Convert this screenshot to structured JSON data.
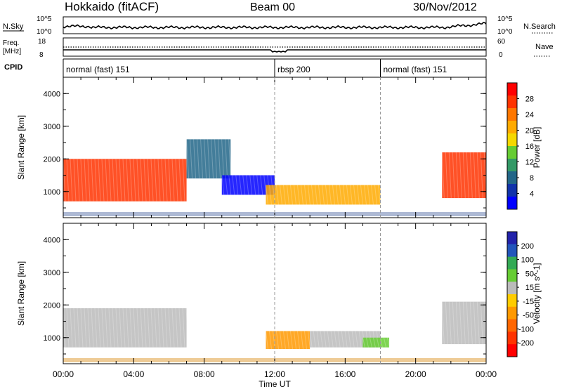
{
  "header": {
    "station": "Hokkaido (fitACF)",
    "beam": "Beam 00",
    "date": "30/Nov/2012"
  },
  "top_panels": {
    "nsky": {
      "label": "N.Sky",
      "tick_hi": "10^5",
      "tick_lo": "10^0",
      "right_label": "N.Search",
      "right_hi": "10^5",
      "right_lo": "10^0"
    },
    "freq": {
      "label_line1": "Freq.",
      "label_line2": "[MHz]",
      "tick_hi": "18",
      "tick_lo": "8",
      "right_label": "Nave",
      "right_hi": "60",
      "right_lo": "0"
    },
    "cpid": {
      "label": "CPID",
      "modes": [
        {
          "name": "normal (fast) 151",
          "start_hour": 0
        },
        {
          "name": "rbsp 200",
          "start_hour": 12
        },
        {
          "name": "normal (fast) 151",
          "start_hour": 18
        }
      ]
    }
  },
  "colorbars": {
    "power": {
      "label": "Power [dB]",
      "ticks": [
        "28",
        "24",
        "20",
        "16",
        "12",
        "8",
        "4"
      ],
      "colors": [
        "#ff0000",
        "#ff3300",
        "#ff7700",
        "#ffaa00",
        "#f5d800",
        "#66cc33",
        "#339966",
        "#226688",
        "#1133aa",
        "#0000ff"
      ]
    },
    "velocity": {
      "label": "Velocity [m s^-1]",
      "ticks": [
        "200",
        "100",
        "50",
        "15",
        "-15",
        "-50",
        "-100",
        "-200"
      ],
      "colors": [
        "#2222aa",
        "#2255bb",
        "#33aa55",
        "#66cc33",
        "#bbbbbb",
        "#ffcc00",
        "#ff9900",
        "#ff6600",
        "#ff3300",
        "#ff0000"
      ]
    }
  },
  "axes": {
    "ylabel": "Slant Range [km]",
    "xlabel": "Time UT",
    "xticks": [
      "00:00",
      "04:00",
      "08:00",
      "12:00",
      "16:00",
      "20:00",
      "00:00"
    ],
    "yticks": [
      "1000",
      "2000",
      "3000",
      "4000"
    ]
  },
  "chart_data": {
    "type": "heatmap",
    "x_unit": "hours UT",
    "xlim": [
      0,
      24
    ],
    "ylim": [
      200,
      4500
    ],
    "panels": [
      {
        "name": "Power",
        "zlabel": "Power [dB]",
        "regions": [
          {
            "t0": 0,
            "t1": 7,
            "r0": 700,
            "r1": 2000,
            "level": 28
          },
          {
            "t0": 7,
            "t1": 9.5,
            "r0": 1400,
            "r1": 2600,
            "level": 8
          },
          {
            "t0": 9,
            "t1": 12,
            "r0": 900,
            "r1": 1500,
            "level": 4
          },
          {
            "t0": 11.5,
            "t1": 18,
            "r0": 600,
            "r1": 1200,
            "level": 20
          },
          {
            "t0": 21.5,
            "t1": 24,
            "r0": 800,
            "r1": 2200,
            "level": 28
          }
        ]
      },
      {
        "name": "Velocity",
        "zlabel": "Velocity [m s^-1]",
        "regions": [
          {
            "t0": 0,
            "t1": 7,
            "r0": 700,
            "r1": 1900,
            "level": 0
          },
          {
            "t0": 11.5,
            "t1": 14,
            "r0": 650,
            "r1": 1200,
            "level": -100
          },
          {
            "t0": 14,
            "t1": 18,
            "r0": 700,
            "r1": 1200,
            "level": 0
          },
          {
            "t0": 17,
            "t1": 18.5,
            "r0": 700,
            "r1": 1000,
            "level": 50
          },
          {
            "t0": 21.5,
            "t1": 24,
            "r0": 800,
            "r1": 2100,
            "level": 0
          }
        ]
      }
    ]
  }
}
